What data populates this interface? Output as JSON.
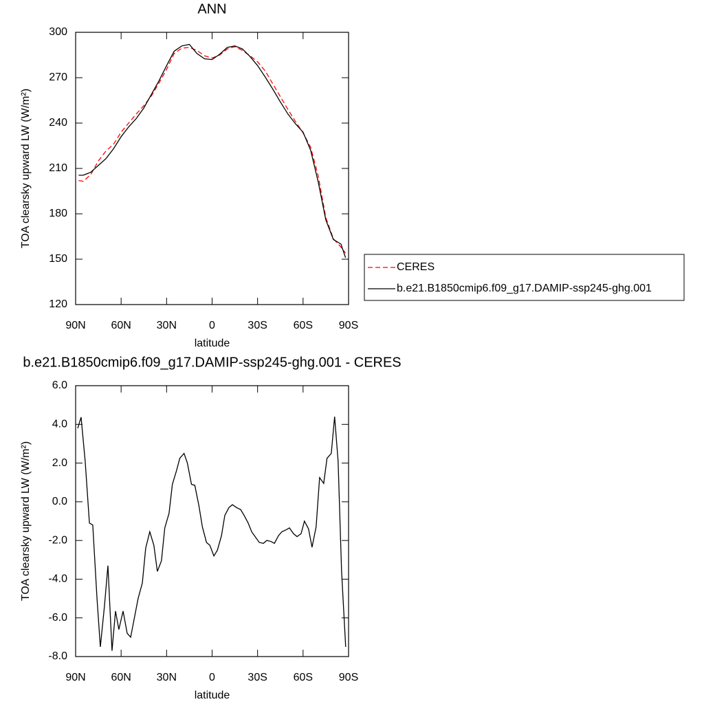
{
  "chart_data": [
    {
      "type": "line",
      "title": "ANN",
      "x_label": "latitude",
      "y_label": "TOA clearsky upward LW (W/m²)",
      "x": [
        88,
        85,
        80,
        75,
        70,
        65,
        60,
        55,
        50,
        45,
        40,
        35,
        30,
        25,
        20,
        15,
        10,
        5,
        0,
        -5,
        -10,
        -15,
        -20,
        -25,
        -30,
        -35,
        -40,
        -45,
        -50,
        -55,
        -60,
        -65,
        -70,
        -75,
        -80,
        -85,
        -88
      ],
      "xlim": [
        90,
        -90
      ],
      "xticks": [
        {
          "value": 90,
          "label": "90N"
        },
        {
          "value": 60,
          "label": "60N"
        },
        {
          "value": 30,
          "label": "30N"
        },
        0,
        {
          "value": -30,
          "label": "30S"
        },
        {
          "value": -60,
          "label": "60S"
        },
        {
          "value": -90,
          "label": "90S"
        }
      ],
      "ylim": [
        120,
        300
      ],
      "yticks": [
        120,
        150,
        180,
        210,
        240,
        270,
        300
      ],
      "legend": "right",
      "series": [
        {
          "name": "CERES",
          "color": "#ff0000",
          "line_style": "dashed",
          "values": [
            202,
            201.5,
            206,
            215,
            221.5,
            226,
            234,
            240,
            246,
            251.5,
            258,
            266.5,
            275.5,
            286,
            289.5,
            290,
            288,
            284.5,
            283,
            285,
            289,
            290.5,
            288,
            284.5,
            280.5,
            274.5,
            266,
            257.5,
            249,
            241,
            233.5,
            224,
            205,
            177.5,
            163.5,
            158,
            154
          ]
        },
        {
          "name": "b.e21.B1850cmip6.f09_g17.DAMIP-ssp245-ghg.001",
          "color": "#000000",
          "line_style": "solid",
          "values": [
            205.5,
            205.5,
            207.5,
            212,
            216.5,
            223,
            231,
            237.5,
            243,
            250,
            259,
            268,
            278,
            287.5,
            291,
            292,
            286,
            282.5,
            282,
            285.5,
            290,
            291,
            289,
            284,
            278,
            270.5,
            262.5,
            254,
            246,
            239.5,
            234,
            222,
            201,
            176,
            163,
            160,
            151
          ]
        }
      ]
    },
    {
      "type": "line",
      "title": "b.e21.B1850cmip6.f09_g17.DAMIP-ssp245-ghg.001 - CERES",
      "x_label": "latitude",
      "y_label": "TOA clearsky upward LW (W/m²)",
      "x": [
        88.6,
        86.4,
        83.7,
        80.9,
        78.7,
        75.9,
        73.7,
        71,
        68.7,
        66,
        63.7,
        61.5,
        58.7,
        56,
        53.7,
        51,
        48.8,
        46,
        43.8,
        41.1,
        38.4,
        36.1,
        33.4,
        31.2,
        28.4,
        26.2,
        23.5,
        21.3,
        18.5,
        16.3,
        13.6,
        11.4,
        8.7,
        6.4,
        3.7,
        1.5,
        -1.2,
        -3.5,
        -6.2,
        -8.4,
        -11.1,
        -13.4,
        -16.1,
        -18.8,
        -21.1,
        -23.8,
        -26.1,
        -28.8,
        -31.1,
        -33.8,
        -36.1,
        -38.8,
        -41.1,
        -43.8,
        -46,
        -48.8,
        -51,
        -53.7,
        -56,
        -58.7,
        -60.9,
        -63.6,
        -65.9,
        -68.6,
        -70.9,
        -73.6,
        -75.8,
        -78.6,
        -80.8,
        -83.1,
        -85.4,
        -88.1
      ],
      "values": [
        3.8,
        4.37,
        2.1,
        -1.1,
        -1.2,
        -5,
        -7.5,
        -5.4,
        -3.3,
        -7.7,
        -5.65,
        -6.6,
        -5.65,
        -6.8,
        -7,
        -5.9,
        -5,
        -4.2,
        -2.4,
        -1.55,
        -2.25,
        -3.6,
        -3.05,
        -1.35,
        -0.6,
        0.9,
        1.6,
        2.25,
        2.5,
        2.0,
        0.9,
        0.85,
        -0.2,
        -1.3,
        -2.1,
        -2.25,
        -2.8,
        -2.5,
        -1.75,
        -0.7,
        -0.3,
        -0.15,
        -0.3,
        -0.4,
        -0.7,
        -1.1,
        -1.55,
        -1.85,
        -2.1,
        -2.15,
        -2.0,
        -2.05,
        -2.15,
        -1.75,
        -1.55,
        -1.45,
        -1.35,
        -1.65,
        -1.8,
        -1.65,
        -1.0,
        -1.4,
        -2.35,
        -1.3,
        1.25,
        0.95,
        2.25,
        2.5,
        4.4,
        2.1,
        -3.6,
        -7.5
      ],
      "color": "#000000",
      "xlim": [
        90,
        -90
      ],
      "xticks": [
        {
          "value": 90,
          "label": "90N"
        },
        {
          "value": 60,
          "label": "60N"
        },
        {
          "value": 30,
          "label": "30N"
        },
        0,
        {
          "value": -30,
          "label": "30S"
        },
        {
          "value": -60,
          "label": "60S"
        },
        {
          "value": -90,
          "label": "90S"
        }
      ],
      "ylim": [
        -8,
        6
      ],
      "yticks": [
        {
          "value": -8,
          "label": "-8.0"
        },
        {
          "value": -6,
          "label": "-6.0"
        },
        {
          "value": -4,
          "label": "-4.0"
        },
        {
          "value": -2,
          "label": "-2.0"
        },
        {
          "value": 0,
          "label": "0.0"
        },
        {
          "value": 2,
          "label": "2.0"
        },
        {
          "value": 4,
          "label": "4.0"
        },
        {
          "value": 6,
          "label": "6.0"
        }
      ]
    }
  ]
}
